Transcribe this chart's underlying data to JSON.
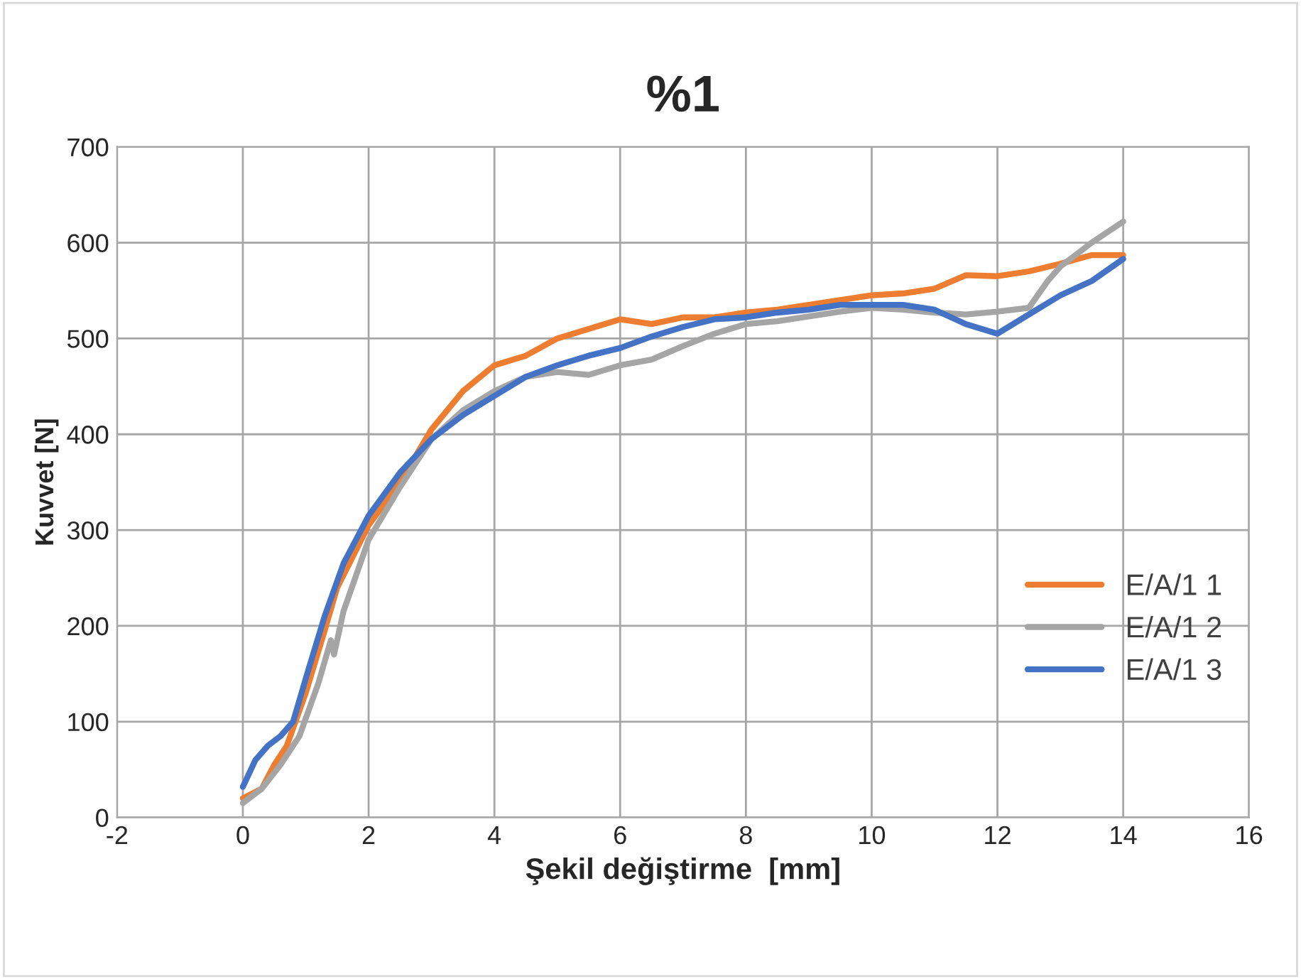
{
  "chart_data": {
    "type": "line",
    "title": "%1",
    "xlabel": "Şekil değiştirme  [mm]",
    "ylabel": "Kuvvet [N]",
    "xlim": [
      -2,
      16
    ],
    "xticks": [
      -2,
      0,
      2,
      4,
      6,
      8,
      10,
      12,
      14,
      16
    ],
    "ylim": [
      0,
      700
    ],
    "yticks": [
      0,
      100,
      200,
      300,
      400,
      500,
      600,
      700
    ],
    "grid": true,
    "legend": "right",
    "marker": "none",
    "line_style": "solid",
    "series": [
      {
        "name": "E/A/1 1",
        "color": "#ed7d31",
        "x": [
          0,
          0.3,
          0.5,
          0.7,
          1.0,
          1.3,
          1.5,
          2,
          2.5,
          3,
          3.5,
          4,
          4.5,
          5,
          5.5,
          6,
          6.5,
          7,
          7.5,
          8,
          8.5,
          9,
          9.5,
          10,
          10.5,
          11,
          11.5,
          12,
          12.5,
          13,
          13.5,
          14
        ],
        "values": [
          20,
          30,
          55,
          75,
          130,
          195,
          240,
          305,
          350,
          405,
          445,
          472,
          482,
          500,
          510,
          520,
          515,
          522,
          522,
          527,
          530,
          535,
          540,
          545,
          547,
          552,
          566,
          565,
          570,
          578,
          587,
          587
        ]
      },
      {
        "name": "E/A/1 2",
        "color": "#a5a5a5",
        "x": [
          0,
          0.3,
          0.6,
          0.9,
          1.2,
          1.4,
          1.45,
          1.6,
          2,
          2.5,
          3,
          3.5,
          4,
          4.5,
          5,
          5.5,
          6,
          6.5,
          7,
          7.5,
          8,
          8.5,
          9,
          9.5,
          10,
          10.5,
          11,
          11.5,
          12,
          12.5,
          12.8,
          13,
          13.5,
          14
        ],
        "values": [
          15,
          30,
          55,
          85,
          140,
          185,
          170,
          215,
          290,
          345,
          395,
          425,
          445,
          460,
          465,
          462,
          472,
          478,
          492,
          505,
          515,
          518,
          523,
          528,
          532,
          530,
          527,
          525,
          528,
          532,
          560,
          575,
          600,
          622
        ]
      },
      {
        "name": "E/A/1 3",
        "color": "#4472c4",
        "x": [
          0,
          0.2,
          0.4,
          0.6,
          0.8,
          1.0,
          1.3,
          1.6,
          2,
          2.5,
          3,
          3.5,
          4,
          4.5,
          5,
          5.5,
          6,
          6.5,
          7,
          7.5,
          8,
          8.5,
          9,
          9.5,
          10,
          10.5,
          11,
          11.5,
          12,
          12.5,
          13,
          13.5,
          14
        ],
        "values": [
          32,
          60,
          75,
          85,
          100,
          145,
          210,
          265,
          315,
          360,
          395,
          420,
          440,
          460,
          472,
          482,
          490,
          502,
          512,
          520,
          522,
          527,
          530,
          535,
          535,
          535,
          530,
          515,
          505,
          525,
          545,
          560,
          583
        ]
      }
    ]
  }
}
